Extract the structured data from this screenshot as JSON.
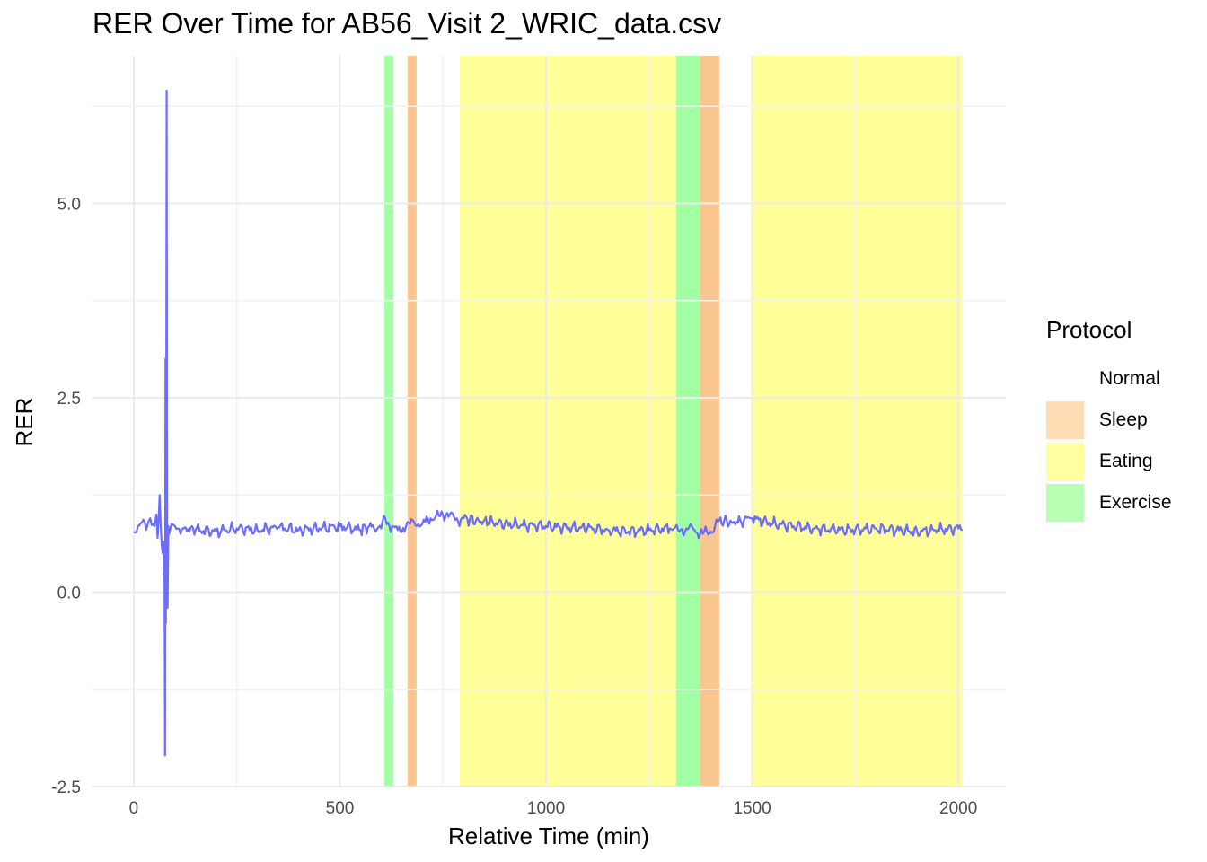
{
  "chart_data": {
    "type": "line",
    "title": "RER Over Time for AB56_Visit 2_WRIC_data.csv",
    "xlabel": "Relative Time (min)",
    "ylabel": "RER",
    "xlim": [
      -100,
      2115
    ],
    "ylim": [
      -2.5,
      6.9
    ],
    "x_ticks": [
      0,
      500,
      1000,
      1500,
      2000
    ],
    "x_tick_labels": [
      "0",
      "500",
      "1000",
      "1500",
      "2000"
    ],
    "y_ticks": [
      -2.5,
      0,
      2.5,
      5
    ],
    "y_tick_labels": [
      "-2.5",
      "0.0",
      "2.5",
      "5.0"
    ],
    "grid": true,
    "legend": {
      "title": "Protocol",
      "placement": "right",
      "entries": [
        {
          "label": "Normal",
          "color": "#ffffff"
        },
        {
          "label": "Sleep",
          "color": "#ffdcb4"
        },
        {
          "label": "Eating",
          "color": "#ffffa0"
        },
        {
          "label": "Exercise",
          "color": "#b8ffb4"
        }
      ]
    },
    "band_colors": {
      "Sleep": "#f5a04a",
      "Eating": "#ffff55",
      "Exercise": "#66ff66"
    },
    "protocol_bands": [
      {
        "protocol": "Exercise",
        "x_start": 608,
        "x_end": 630
      },
      {
        "protocol": "Sleep",
        "x_start": 664,
        "x_end": 686
      },
      {
        "protocol": "Eating",
        "x_start": 790,
        "x_end": 1315
      },
      {
        "protocol": "Exercise",
        "x_start": 1315,
        "x_end": 1373
      },
      {
        "protocol": "Sleep",
        "x_start": 1373,
        "x_end": 1420
      },
      {
        "protocol": "Eating",
        "x_start": 1497,
        "x_end": 2010
      }
    ],
    "series": [
      {
        "color": "#6464ff",
        "x": [
          0,
          10,
          20,
          30,
          40,
          50,
          55,
          58,
          60,
          63,
          65,
          68,
          70,
          72,
          73,
          74,
          75,
          76,
          77,
          78,
          79,
          80,
          81,
          82,
          84,
          86,
          88,
          92,
          100,
          120,
          150,
          200,
          250,
          300,
          350,
          400,
          450,
          500,
          550,
          580,
          600,
          610,
          620,
          640,
          660,
          680,
          700,
          720,
          740,
          760,
          780,
          800,
          830,
          860,
          900,
          950,
          1000,
          1050,
          1100,
          1150,
          1200,
          1250,
          1300,
          1320,
          1340,
          1360,
          1380,
          1400,
          1420,
          1450,
          1480,
          1500,
          1550,
          1600,
          1650,
          1700,
          1750,
          1800,
          1850,
          1900,
          1950,
          2000,
          2010
        ],
        "y": [
          0.78,
          0.85,
          0.9,
          0.8,
          0.95,
          0.85,
          1.0,
          0.7,
          0.9,
          1.25,
          0.9,
          0.6,
          0.5,
          0.65,
          0.3,
          0.45,
          0.0,
          -2.1,
          3.0,
          -0.4,
          2.9,
          6.45,
          0.1,
          -0.2,
          0.85,
          0.75,
          0.8,
          0.88,
          0.85,
          0.82,
          0.8,
          0.78,
          0.82,
          0.8,
          0.83,
          0.8,
          0.82,
          0.85,
          0.8,
          0.86,
          0.82,
          0.95,
          0.85,
          0.8,
          0.84,
          0.9,
          0.88,
          0.95,
          0.98,
          1.02,
          0.93,
          0.95,
          0.92,
          0.9,
          0.88,
          0.86,
          0.85,
          0.83,
          0.82,
          0.8,
          0.78,
          0.8,
          0.82,
          0.8,
          0.82,
          0.8,
          0.75,
          0.78,
          0.92,
          0.9,
          0.92,
          0.95,
          0.88,
          0.85,
          0.82,
          0.8,
          0.8,
          0.82,
          0.8,
          0.78,
          0.8,
          0.82,
          0.8
        ]
      }
    ]
  }
}
